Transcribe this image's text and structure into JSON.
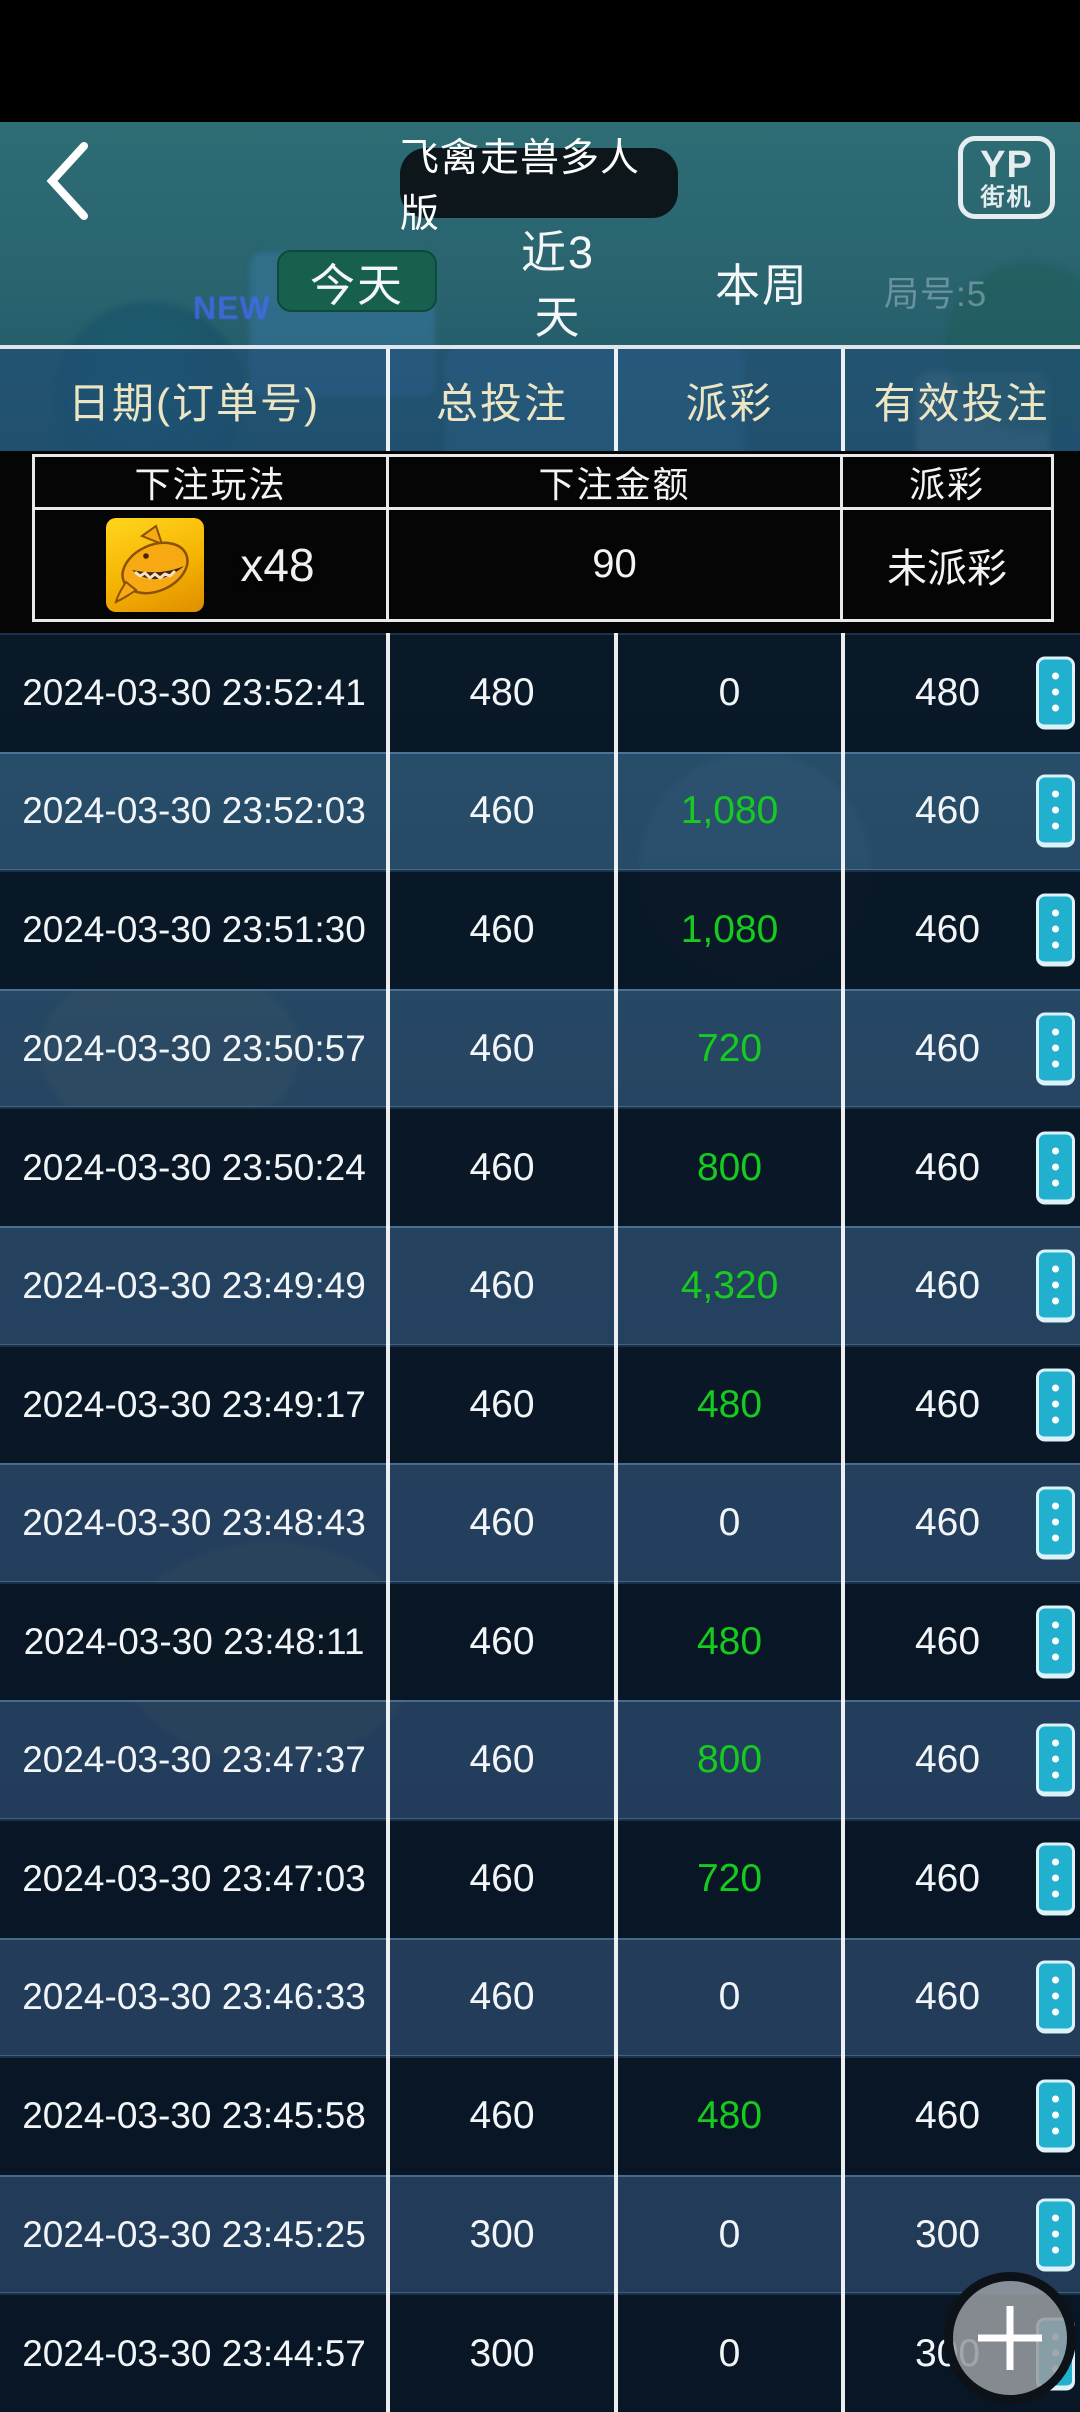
{
  "header": {
    "title": "飞禽走兽多人版",
    "round_label": "局号:5",
    "logo_line1": "YP",
    "logo_line2": "街机",
    "background_badge": "NEW",
    "back_icon": "chevron-left"
  },
  "tabs": [
    {
      "label": "今天",
      "active": true
    },
    {
      "label": "近3天",
      "active": false
    },
    {
      "label": "本周",
      "active": false
    }
  ],
  "history_table": {
    "columns": [
      "日期(订单号)",
      "总投注",
      "派彩",
      "有效投注"
    ]
  },
  "bet_detail": {
    "columns": [
      "下注玩法",
      "下注金额",
      "派彩"
    ],
    "entry": {
      "icon": "shark-icon",
      "multiplier": "x48",
      "amount": "90",
      "payout_status": "未派彩"
    }
  },
  "rows": [
    {
      "datetime": "2024-03-30 23:52:41",
      "total_bet": "480",
      "payout": "0",
      "win": false,
      "valid_bet": "480"
    },
    {
      "datetime": "2024-03-30 23:52:03",
      "total_bet": "460",
      "payout": "1,080",
      "win": true,
      "valid_bet": "460"
    },
    {
      "datetime": "2024-03-30 23:51:30",
      "total_bet": "460",
      "payout": "1,080",
      "win": true,
      "valid_bet": "460"
    },
    {
      "datetime": "2024-03-30 23:50:57",
      "total_bet": "460",
      "payout": "720",
      "win": true,
      "valid_bet": "460"
    },
    {
      "datetime": "2024-03-30 23:50:24",
      "total_bet": "460",
      "payout": "800",
      "win": true,
      "valid_bet": "460"
    },
    {
      "datetime": "2024-03-30 23:49:49",
      "total_bet": "460",
      "payout": "4,320",
      "win": true,
      "valid_bet": "460"
    },
    {
      "datetime": "2024-03-30 23:49:17",
      "total_bet": "460",
      "payout": "480",
      "win": true,
      "valid_bet": "460"
    },
    {
      "datetime": "2024-03-30 23:48:43",
      "total_bet": "460",
      "payout": "0",
      "win": false,
      "valid_bet": "460"
    },
    {
      "datetime": "2024-03-30 23:48:11",
      "total_bet": "460",
      "payout": "480",
      "win": true,
      "valid_bet": "460"
    },
    {
      "datetime": "2024-03-30 23:47:37",
      "total_bet": "460",
      "payout": "800",
      "win": true,
      "valid_bet": "460"
    },
    {
      "datetime": "2024-03-30 23:47:03",
      "total_bet": "460",
      "payout": "720",
      "win": true,
      "valid_bet": "460"
    },
    {
      "datetime": "2024-03-30 23:46:33",
      "total_bet": "460",
      "payout": "0",
      "win": false,
      "valid_bet": "460"
    },
    {
      "datetime": "2024-03-30 23:45:58",
      "total_bet": "460",
      "payout": "480",
      "win": true,
      "valid_bet": "460"
    },
    {
      "datetime": "2024-03-30 23:45:25",
      "total_bet": "300",
      "payout": "0",
      "win": false,
      "valid_bet": "300"
    },
    {
      "datetime": "2024-03-30 23:44:57",
      "total_bet": "300",
      "payout": "0",
      "win": false,
      "valid_bet": "300"
    }
  ],
  "fab": {
    "icon": "plus-icon"
  },
  "colors": {
    "payout_win": "#16cb1f",
    "tab_active_bg": "#17604d",
    "menu_button": "#22b0cf",
    "table_header_text": "#ece5c3",
    "row_dark": "#091524",
    "row_light": "#3e6084"
  }
}
